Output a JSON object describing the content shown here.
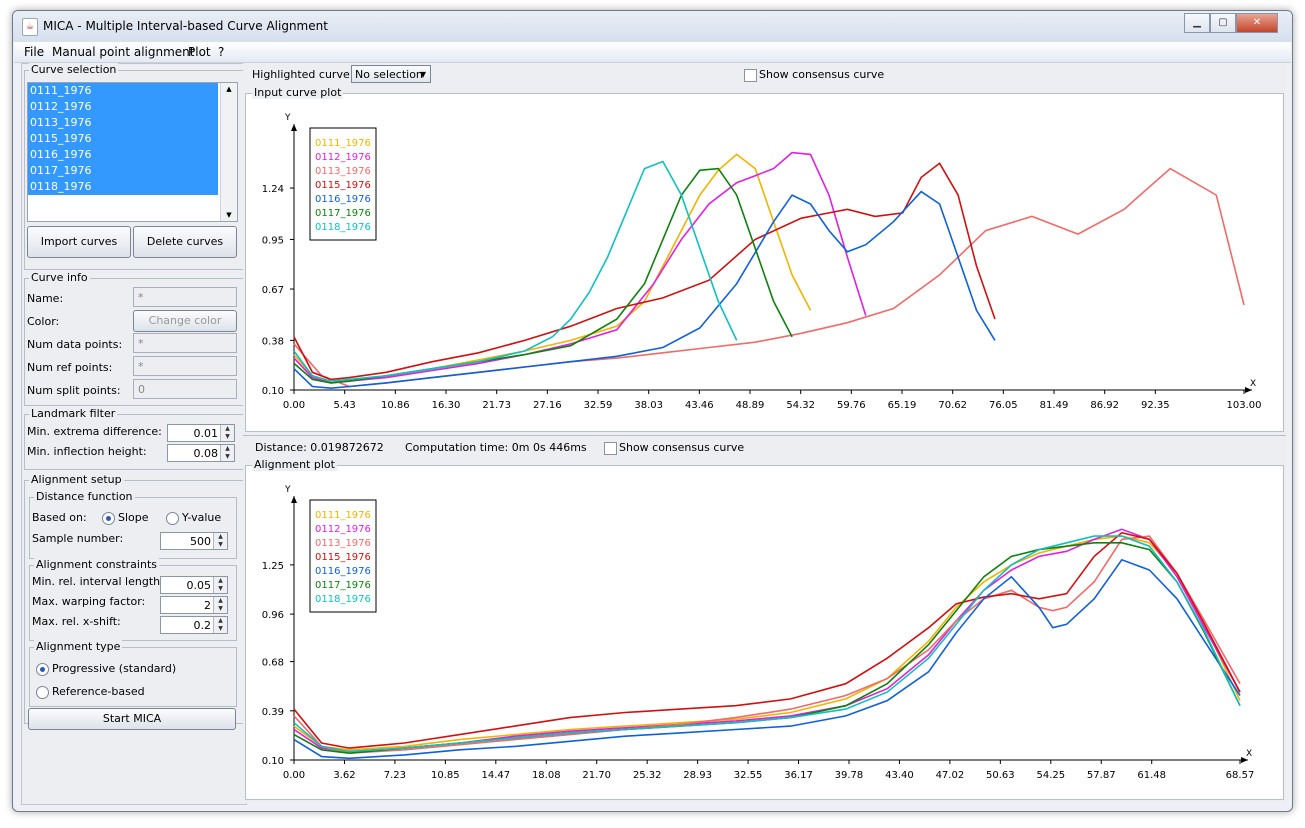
{
  "window": {
    "title": "MICA - Multiple Interval-based Curve Alignment"
  },
  "menu": [
    "File",
    "Manual point alignment",
    "Plot",
    "?"
  ],
  "curve_selection": {
    "title": "Curve selection",
    "items": [
      "0111_1976",
      "0112_1976",
      "0113_1976",
      "0115_1976",
      "0116_1976",
      "0117_1976",
      "0118_1976"
    ],
    "import_label": "Import curves",
    "delete_label": "Delete curves"
  },
  "curve_info": {
    "title": "Curve info",
    "name_label": "Name:",
    "name_value": "*",
    "color_label": "Color:",
    "change_color_label": "Change color",
    "num_data_label": "Num data points:",
    "num_data_value": "*",
    "num_ref_label": "Num ref points:",
    "num_ref_value": "*",
    "num_split_label": "Num split points:",
    "num_split_value": "0"
  },
  "landmark": {
    "title": "Landmark filter",
    "extrema_label": "Min. extrema difference:",
    "extrema_value": "0.01",
    "inflection_label": "Min. inflection height:",
    "inflection_value": "0.08"
  },
  "alignment": {
    "title": "Alignment setup",
    "distance_title": "Distance function",
    "based_on_label": "Based on:",
    "slope_label": "Slope",
    "yvalue_label": "Y-value",
    "sample_label": "Sample number:",
    "sample_value": "500",
    "constraints_title": "Alignment constraints",
    "min_interval_label": "Min. rel. interval length:",
    "min_interval_value": "0.05",
    "max_warp_label": "Max. warping factor:",
    "max_warp_value": "2",
    "max_shift_label": "Max. rel. x-shift:",
    "max_shift_value": "0.2",
    "type_title": "Alignment type",
    "progressive_label": "Progressive (standard)",
    "reference_label": "Reference-based",
    "start_label": "Start MICA"
  },
  "top_panel": {
    "highlight_label": "Highlighted curve:",
    "highlight_value": "No selection",
    "consensus_label": "Show consensus curve",
    "plot_title": "Input curve plot"
  },
  "bottom_panel": {
    "distance": "Distance: 0.019872672",
    "computation": "Computation time: 0m 0s 446ms",
    "consensus_label": "Show consensus curve",
    "plot_title": "Alignment plot"
  },
  "colors": {
    "0111_1976": "#f0b400",
    "0112_1976": "#e020e0",
    "0113_1976": "#f06a6a",
    "0115_1976": "#d01010",
    "0116_1976": "#1060d8",
    "0117_1976": "#108010",
    "0118_1976": "#10c0c0"
  },
  "chart_data": [
    {
      "type": "line",
      "title": "Input curve plot",
      "xlabel": "X",
      "ylabel": "Y",
      "x_ticks": [
        "0.00",
        "5.43",
        "10.86",
        "16.30",
        "21.73",
        "27.16",
        "32.59",
        "38.03",
        "43.46",
        "48.89",
        "54.32",
        "59.76",
        "65.19",
        "70.62",
        "76.05",
        "81.49",
        "86.92",
        "92.35",
        "103.00"
      ],
      "y_ticks": [
        "0.10",
        "0.38",
        "0.67",
        "0.95",
        "1.24"
      ],
      "xlim": [
        0,
        103
      ],
      "ylim": [
        0.1,
        1.5
      ],
      "series": [
        {
          "name": "0111_1976",
          "x": [
            0,
            2,
            4,
            6,
            10,
            15,
            20,
            25,
            30,
            35,
            38,
            41,
            44,
            46,
            48,
            50,
            52,
            54,
            56
          ],
          "y": [
            0.3,
            0.18,
            0.14,
            0.15,
            0.18,
            0.22,
            0.27,
            0.32,
            0.38,
            0.46,
            0.6,
            0.9,
            1.2,
            1.34,
            1.43,
            1.35,
            1.05,
            0.75,
            0.55
          ]
        },
        {
          "name": "0112_1976",
          "x": [
            0,
            2,
            4,
            6,
            10,
            15,
            20,
            25,
            30,
            35,
            39,
            42,
            45,
            48,
            50,
            52,
            54,
            56,
            58,
            60,
            62
          ],
          "y": [
            0.28,
            0.17,
            0.14,
            0.15,
            0.17,
            0.21,
            0.25,
            0.3,
            0.36,
            0.44,
            0.7,
            0.95,
            1.15,
            1.27,
            1.31,
            1.35,
            1.44,
            1.43,
            1.2,
            0.85,
            0.52
          ]
        },
        {
          "name": "0113_1976",
          "x": [
            0,
            3,
            6,
            10,
            15,
            20,
            25,
            30,
            35,
            40,
            45,
            50,
            55,
            60,
            65,
            70,
            75,
            80,
            85,
            90,
            95,
            100,
            103
          ],
          "y": [
            0.36,
            0.18,
            0.12,
            0.14,
            0.17,
            0.2,
            0.23,
            0.26,
            0.28,
            0.31,
            0.34,
            0.37,
            0.42,
            0.48,
            0.56,
            0.75,
            1.0,
            1.08,
            0.98,
            1.12,
            1.35,
            1.2,
            0.58
          ]
        },
        {
          "name": "0115_1976",
          "x": [
            0,
            2,
            4,
            6,
            10,
            15,
            20,
            25,
            30,
            35,
            40,
            45,
            50,
            55,
            58,
            60,
            63,
            66,
            68,
            70,
            72,
            74,
            76
          ],
          "y": [
            0.4,
            0.2,
            0.16,
            0.17,
            0.2,
            0.26,
            0.31,
            0.38,
            0.46,
            0.56,
            0.62,
            0.72,
            0.95,
            1.07,
            1.1,
            1.12,
            1.08,
            1.1,
            1.3,
            1.38,
            1.2,
            0.8,
            0.5
          ]
        },
        {
          "name": "0116_1976",
          "x": [
            0,
            2,
            4,
            6,
            10,
            15,
            20,
            25,
            30,
            35,
            40,
            44,
            48,
            52,
            54,
            56,
            58,
            60,
            62,
            65,
            68,
            70,
            72,
            74,
            76
          ],
          "y": [
            0.22,
            0.12,
            0.11,
            0.12,
            0.14,
            0.17,
            0.2,
            0.23,
            0.26,
            0.29,
            0.34,
            0.45,
            0.7,
            1.05,
            1.2,
            1.15,
            1.0,
            0.88,
            0.92,
            1.05,
            1.22,
            1.15,
            0.85,
            0.55,
            0.38
          ]
        },
        {
          "name": "0117_1976",
          "x": [
            0,
            2,
            4,
            6,
            10,
            15,
            20,
            25,
            30,
            35,
            38,
            40,
            42,
            44,
            46,
            48,
            50,
            52,
            54
          ],
          "y": [
            0.25,
            0.16,
            0.14,
            0.15,
            0.18,
            0.22,
            0.26,
            0.3,
            0.35,
            0.5,
            0.7,
            0.95,
            1.2,
            1.34,
            1.35,
            1.2,
            0.9,
            0.6,
            0.4
          ]
        },
        {
          "name": "0118_1976",
          "x": [
            0,
            2,
            4,
            6,
            10,
            15,
            20,
            25,
            28,
            30,
            32,
            34,
            36,
            38,
            40,
            42,
            44,
            46,
            48
          ],
          "y": [
            0.32,
            0.18,
            0.15,
            0.16,
            0.18,
            0.22,
            0.26,
            0.32,
            0.4,
            0.5,
            0.65,
            0.85,
            1.1,
            1.35,
            1.39,
            1.2,
            0.9,
            0.6,
            0.38
          ]
        }
      ]
    },
    {
      "type": "line",
      "title": "Alignment plot",
      "xlabel": "X",
      "ylabel": "Y",
      "x_ticks": [
        "0.00",
        "3.62",
        "7.23",
        "10.85",
        "14.47",
        "18.08",
        "21.70",
        "25.32",
        "28.93",
        "32.55",
        "36.17",
        "39.78",
        "43.40",
        "47.02",
        "50.63",
        "54.25",
        "57.87",
        "61.48",
        "68.57"
      ],
      "y_ticks": [
        "0.10",
        "0.39",
        "0.68",
        "0.96",
        "1.25"
      ],
      "xlim": [
        0,
        68.57
      ],
      "ylim": [
        0.1,
        1.55
      ],
      "series": [
        {
          "name": "0111_1976",
          "x": [
            0,
            2,
            4,
            8,
            12,
            16,
            20,
            24,
            28,
            32,
            36,
            40,
            43,
            46,
            48,
            50,
            52,
            54,
            56,
            58,
            60,
            62,
            64,
            66,
            68.57
          ],
          "y": [
            0.3,
            0.18,
            0.16,
            0.18,
            0.22,
            0.25,
            0.28,
            0.3,
            0.32,
            0.34,
            0.38,
            0.46,
            0.58,
            0.8,
            1.0,
            1.15,
            1.25,
            1.32,
            1.36,
            1.4,
            1.42,
            1.38,
            1.2,
            0.9,
            0.45
          ]
        },
        {
          "name": "0112_1976",
          "x": [
            0,
            2,
            4,
            8,
            12,
            16,
            20,
            24,
            28,
            32,
            36,
            40,
            43,
            46,
            48,
            50,
            52,
            54,
            56,
            58,
            60,
            62,
            64,
            66,
            68.57
          ],
          "y": [
            0.28,
            0.17,
            0.15,
            0.17,
            0.2,
            0.24,
            0.27,
            0.29,
            0.31,
            0.33,
            0.36,
            0.42,
            0.52,
            0.72,
            0.92,
            1.1,
            1.22,
            1.3,
            1.33,
            1.4,
            1.46,
            1.4,
            1.18,
            0.88,
            0.5
          ]
        },
        {
          "name": "0113_1976",
          "x": [
            0,
            2,
            4,
            8,
            12,
            16,
            20,
            24,
            28,
            32,
            36,
            40,
            43,
            46,
            48,
            50,
            52,
            54,
            55,
            56,
            58,
            60,
            62,
            64,
            66,
            68.57
          ],
          "y": [
            0.36,
            0.18,
            0.14,
            0.16,
            0.19,
            0.22,
            0.25,
            0.28,
            0.31,
            0.35,
            0.4,
            0.48,
            0.58,
            0.75,
            0.92,
            1.05,
            1.1,
            1.0,
            0.98,
            1.0,
            1.15,
            1.4,
            1.42,
            1.2,
            0.92,
            0.55
          ]
        },
        {
          "name": "0115_1976",
          "x": [
            0,
            2,
            4,
            8,
            12,
            16,
            20,
            24,
            28,
            32,
            36,
            40,
            43,
            46,
            48,
            50,
            52,
            54,
            56,
            58,
            60,
            62,
            64,
            66,
            68.57
          ],
          "y": [
            0.4,
            0.2,
            0.17,
            0.2,
            0.25,
            0.3,
            0.35,
            0.38,
            0.4,
            0.42,
            0.46,
            0.55,
            0.7,
            0.88,
            1.02,
            1.06,
            1.08,
            1.05,
            1.08,
            1.3,
            1.44,
            1.4,
            1.2,
            0.9,
            0.5
          ]
        },
        {
          "name": "0116_1976",
          "x": [
            0,
            2,
            4,
            8,
            12,
            16,
            20,
            24,
            28,
            32,
            36,
            40,
            43,
            46,
            48,
            50,
            52,
            54,
            55,
            56,
            58,
            60,
            62,
            64,
            66,
            68.57
          ],
          "y": [
            0.22,
            0.12,
            0.11,
            0.13,
            0.16,
            0.18,
            0.21,
            0.24,
            0.26,
            0.28,
            0.3,
            0.36,
            0.45,
            0.62,
            0.85,
            1.05,
            1.18,
            1.0,
            0.88,
            0.9,
            1.05,
            1.28,
            1.22,
            1.05,
            0.8,
            0.48
          ]
        },
        {
          "name": "0117_1976",
          "x": [
            0,
            2,
            4,
            8,
            12,
            16,
            20,
            24,
            28,
            32,
            36,
            40,
            43,
            46,
            48,
            50,
            52,
            54,
            56,
            58,
            60,
            62,
            64,
            66,
            68.57
          ],
          "y": [
            0.25,
            0.16,
            0.14,
            0.17,
            0.2,
            0.23,
            0.26,
            0.28,
            0.3,
            0.32,
            0.35,
            0.42,
            0.55,
            0.78,
            0.98,
            1.18,
            1.3,
            1.34,
            1.36,
            1.38,
            1.38,
            1.34,
            1.15,
            0.85,
            0.42
          ]
        },
        {
          "name": "0118_1976",
          "x": [
            0,
            2,
            4,
            8,
            12,
            16,
            20,
            24,
            28,
            32,
            36,
            40,
            43,
            46,
            48,
            50,
            52,
            54,
            56,
            58,
            60,
            62,
            64,
            66,
            68.57
          ],
          "y": [
            0.32,
            0.18,
            0.15,
            0.17,
            0.2,
            0.23,
            0.26,
            0.28,
            0.3,
            0.32,
            0.35,
            0.4,
            0.5,
            0.7,
            0.9,
            1.1,
            1.25,
            1.34,
            1.38,
            1.42,
            1.42,
            1.36,
            1.15,
            0.86,
            0.42
          ]
        }
      ]
    }
  ]
}
